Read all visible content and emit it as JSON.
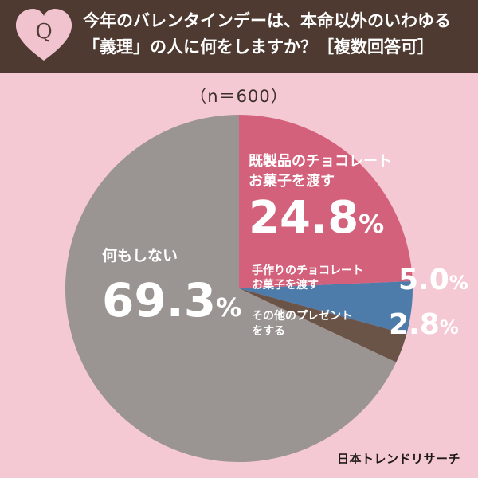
{
  "header": {
    "badge_letter": "Q",
    "question_line1": "今年のバレンタインデーは、本命以外のいわゆる",
    "question_line2": "「義理」の人に何をしますか？［複数回答可］"
  },
  "sample_size": "（n＝600）",
  "credit": "日本トレンドリサーチ",
  "colors": {
    "background": "#f4c9d4",
    "header": "#4e3a31",
    "badge_heart": "#f0c3cf",
    "text_on_dark": "#ffffff"
  },
  "chart_data": {
    "type": "pie",
    "title": "",
    "slices": [
      {
        "label": "既製品のチョコレート お菓子を渡す",
        "value": 24.8,
        "value_text": "24.8",
        "unit": "%",
        "color": "#d4617b"
      },
      {
        "label": "手作りのチョコレート お菓子を渡す",
        "value": 5.0,
        "value_text": "5.0",
        "unit": "%",
        "color": "#4d7cab"
      },
      {
        "label": "その他のプレゼント をする",
        "value": 2.8,
        "value_text": "2.8",
        "unit": "%",
        "color": "#6a5448"
      },
      {
        "label": "何もしない",
        "value": 69.3,
        "value_text": "69.3",
        "unit": "%",
        "color": "#9a9492"
      }
    ],
    "start": "12 o'clock",
    "direction": "clockwise"
  },
  "labels": {
    "kiseihin": {
      "line1": "既製品のチョコレート",
      "line2": "お菓子を渡す"
    },
    "tezukuri": {
      "line1": "手作りのチョコレート",
      "line2": "お菓子を渡す"
    },
    "sonota": {
      "line1": "その他のプレゼント",
      "line2": "をする"
    },
    "nanimo": {
      "line1": "何もしない"
    }
  }
}
